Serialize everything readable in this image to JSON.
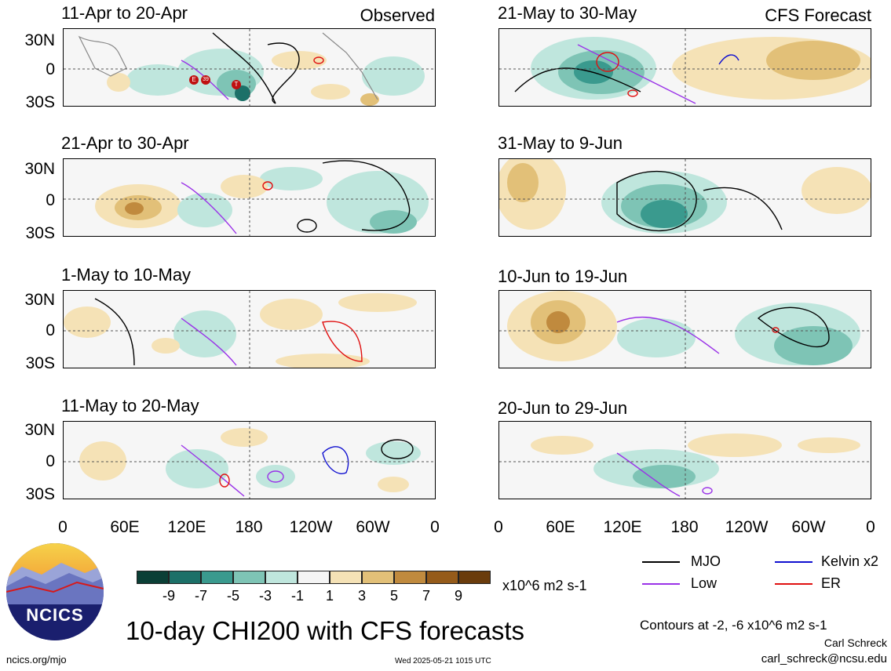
{
  "panels": [
    {
      "id": "p1",
      "title": "11-Apr to 20-Apr",
      "tag": "Observed"
    },
    {
      "id": "p2",
      "title": "21-Apr to 30-Apr",
      "tag": ""
    },
    {
      "id": "p3",
      "title": "1-May to 10-May",
      "tag": ""
    },
    {
      "id": "p4",
      "title": "11-May to 20-May",
      "tag": ""
    },
    {
      "id": "p5",
      "title": "21-May to 30-May",
      "tag": "CFS Forecast"
    },
    {
      "id": "p6",
      "title": "31-May to 9-Jun",
      "tag": ""
    },
    {
      "id": "p7",
      "title": "10-Jun to 19-Jun",
      "tag": ""
    },
    {
      "id": "p8",
      "title": "20-Jun to 29-Jun",
      "tag": ""
    }
  ],
  "lat_labels": [
    "30N",
    "0",
    "30S"
  ],
  "lon_labels": [
    "0",
    "60E",
    "120E",
    "180",
    "120W",
    "60W",
    "0"
  ],
  "colorbar": {
    "colors": [
      "#0b3f36",
      "#1c7068",
      "#3a9a8e",
      "#7ec4b5",
      "#bfe6dd",
      "#f4f4f4",
      "#f5e2b6",
      "#e2c078",
      "#c08a3e",
      "#955b1a",
      "#6a3c0c"
    ],
    "labels": [
      "-9",
      "-7",
      "-5",
      "-3",
      "-1",
      "1",
      "3",
      "5",
      "7",
      "9"
    ],
    "units": "x10^6 m2 s-1"
  },
  "legend": {
    "mjo": {
      "label": "MJO",
      "color": "#000000"
    },
    "low": {
      "label": "Low",
      "color": "#9a32e8"
    },
    "kelvin": {
      "label": "Kelvin x2",
      "color": "#1010d0"
    },
    "er": {
      "label": "ER",
      "color": "#e01010"
    },
    "contours_note": "Contours at -2, -6 x10^6 m2 s-1",
    "author": "Carl Schreck",
    "email": "carl_schreck@ncsu.edu"
  },
  "logo_text": "NCICS",
  "main_title": "10-day CHI200 with CFS forecasts",
  "footer_left": "ncics.org/mjo",
  "footer_timestamp": "Wed 2025-05-21 1015 UTC",
  "storm_markers": [
    "E",
    "39",
    "T"
  ]
}
